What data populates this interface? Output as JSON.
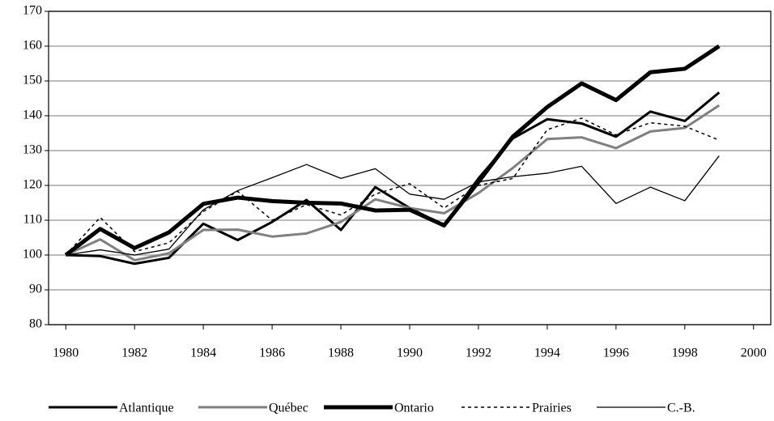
{
  "chart_data": {
    "type": "line",
    "x": [
      1980,
      1981,
      1982,
      1983,
      1984,
      1985,
      1986,
      1987,
      1988,
      1989,
      1990,
      1991,
      1992,
      1993,
      1994,
      1995,
      1996,
      1997,
      1998,
      1999
    ],
    "xlim": [
      1979.5,
      2000.5
    ],
    "xticks": [
      1980,
      1982,
      1984,
      1986,
      1988,
      1990,
      1992,
      1994,
      1996,
      1998,
      2000
    ],
    "ylim": [
      80,
      170
    ],
    "yticks": [
      80,
      90,
      100,
      110,
      120,
      130,
      140,
      150,
      160,
      170
    ],
    "grid": true,
    "legend": "bottom",
    "series": [
      {
        "name": "Atlantique",
        "color": "#000000",
        "width": 3,
        "dashed": false,
        "values": [
          100,
          99.7,
          97.5,
          99.2,
          109,
          104.3,
          109.5,
          115.8,
          107.2,
          119.5,
          113.5,
          108.5,
          122,
          133.5,
          139,
          137.8,
          134,
          141.2,
          138.5,
          146.7
        ]
      },
      {
        "name": "Québec",
        "color": "#808080",
        "width": 3,
        "dashed": false,
        "values": [
          100,
          104.5,
          98.5,
          100.5,
          107.2,
          107.3,
          105.3,
          106.2,
          109.5,
          116,
          113.5,
          112,
          117.8,
          125,
          133.3,
          133.8,
          130.7,
          135.5,
          136.5,
          143
        ]
      },
      {
        "name": "Ontario",
        "color": "#000000",
        "width": 5,
        "dashed": false,
        "values": [
          100,
          107.5,
          102,
          106.5,
          114.7,
          116.5,
          115.5,
          115,
          114.8,
          112.8,
          113,
          108.5,
          121,
          134,
          142.5,
          149.3,
          144.5,
          152.5,
          153.5,
          160
        ]
      },
      {
        "name": "Prairies",
        "color": "#000000",
        "width": 1.5,
        "dashed": true,
        "values": [
          100,
          110.8,
          101,
          103.5,
          112.5,
          118.3,
          110,
          114.5,
          111.5,
          117.5,
          120.5,
          113.5,
          120,
          122,
          136,
          139.3,
          134.5,
          138,
          137,
          133
        ]
      },
      {
        "name": "C.-B.",
        "color": "#000000",
        "width": 1.3,
        "dashed": false,
        "values": [
          100,
          101.5,
          100,
          101.7,
          113,
          118.5,
          122.2,
          126,
          122,
          124.8,
          117.5,
          116,
          121,
          122.5,
          123.5,
          125.5,
          114.8,
          119.5,
          115.6,
          128.5
        ]
      }
    ]
  }
}
